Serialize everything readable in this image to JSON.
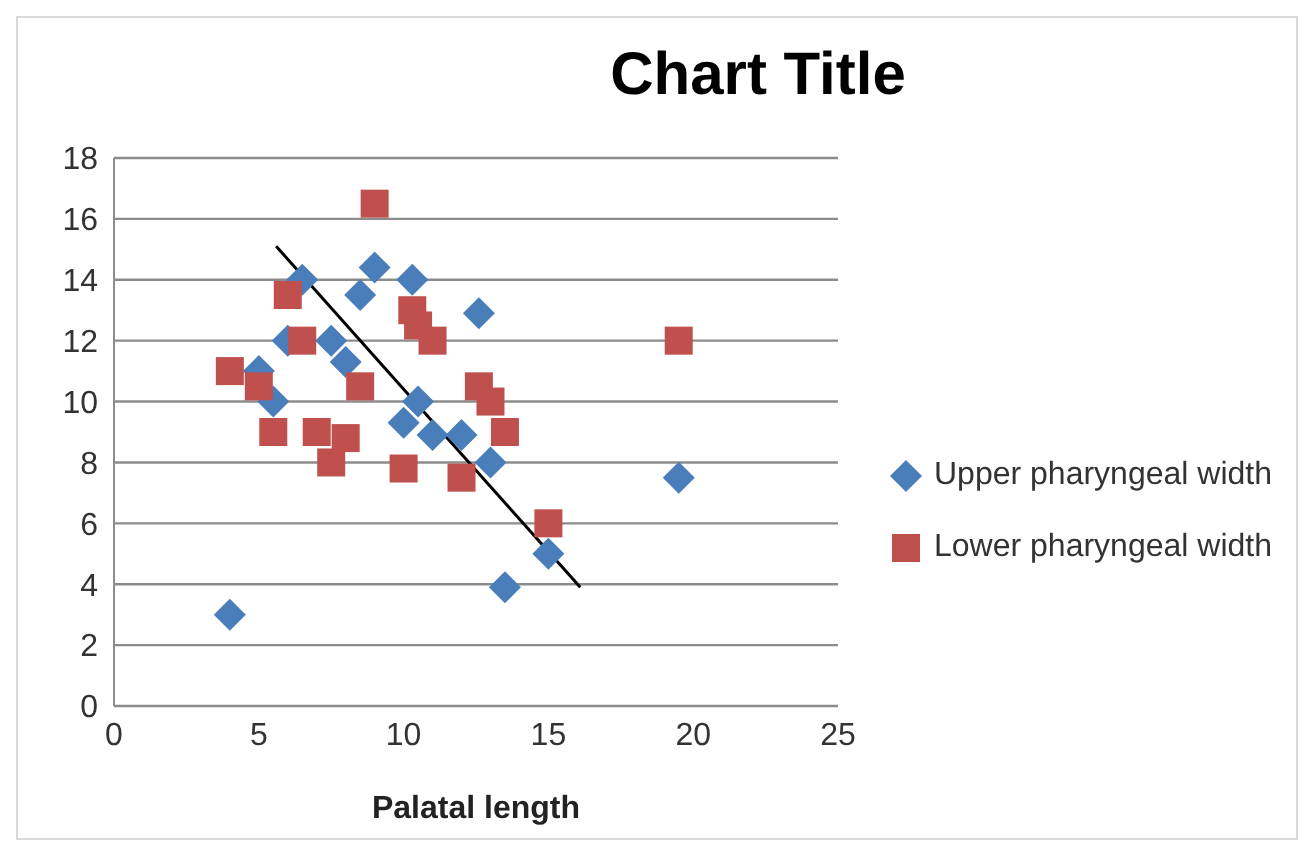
{
  "chart_data": {
    "type": "scatter",
    "title": "Chart Title",
    "xlabel": "Palatal length",
    "xlim": [
      0,
      25
    ],
    "xticks": [
      0,
      5,
      10,
      15,
      20,
      25
    ],
    "ylim": [
      0,
      18
    ],
    "yticks": [
      0,
      2,
      4,
      6,
      8,
      10,
      12,
      14,
      16,
      18
    ],
    "grid": "y",
    "legend": "right",
    "series": [
      {
        "name": "Upper pharyngeal width",
        "color": "#4a7ebb",
        "marker": "diamond",
        "x": [
          4,
          5,
          5.5,
          6,
          6.5,
          7.5,
          8,
          8.5,
          9,
          10,
          10.5,
          10.3,
          11,
          12,
          12.6,
          13,
          13.5,
          15,
          19.5
        ],
        "values": [
          3,
          11,
          10,
          12,
          14,
          12,
          11.3,
          13.5,
          14.4,
          9.3,
          10,
          14,
          8.9,
          8.9,
          12.9,
          8,
          3.9,
          5,
          7.5
        ]
      },
      {
        "name": "Lower pharyngeal width",
        "color": "#c0504d",
        "marker": "square",
        "x": [
          4,
          5,
          5.5,
          6,
          6.5,
          7,
          7.5,
          8,
          8.5,
          9,
          10,
          10.3,
          10.5,
          11,
          12,
          12.6,
          13,
          13.5,
          15,
          19.5
        ],
        "values": [
          11,
          10.5,
          9,
          13.5,
          12,
          9,
          8,
          8.8,
          10.5,
          16.5,
          7.8,
          13,
          12.5,
          12,
          7.5,
          10.5,
          10,
          9,
          6,
          12
        ]
      },
      {
        "type": "line",
        "color": "#000000",
        "marker": "none",
        "x": [
          5.6,
          16.1
        ],
        "values": [
          15.1,
          3.9
        ]
      }
    ]
  }
}
